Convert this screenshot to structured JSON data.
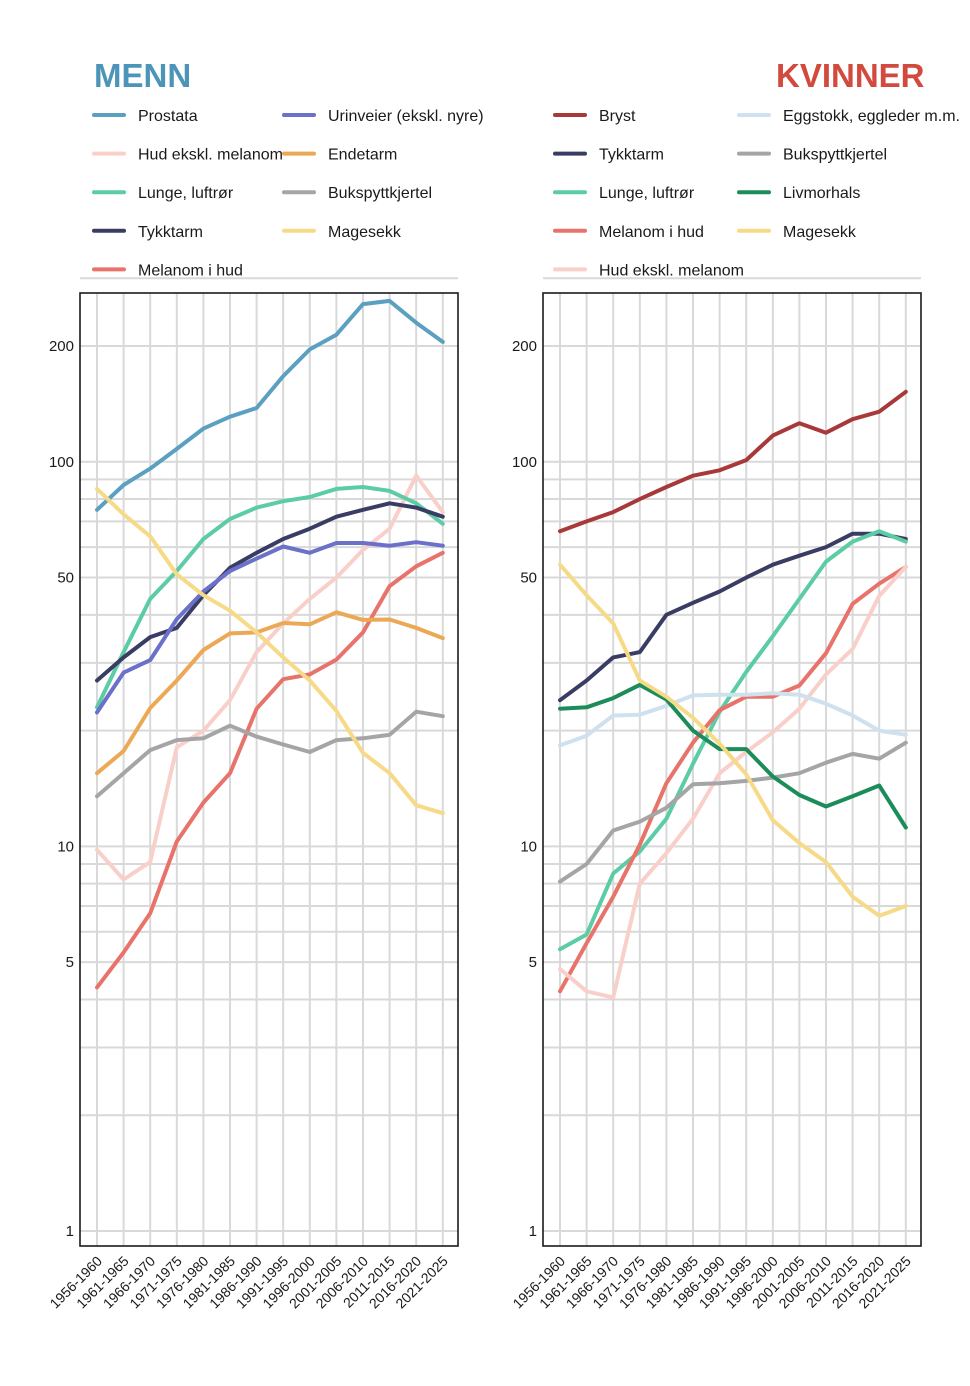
{
  "chart_data": [
    {
      "type": "line",
      "title": "MENN",
      "title_color": "#4c94b8",
      "y_scale": "log",
      "ylim": [
        1,
        300
      ],
      "y_ticks": [
        1,
        5,
        10,
        50,
        100,
        200
      ],
      "grid": true,
      "legend_placement": "top",
      "categories": [
        "1956-1960",
        "1961-1965",
        "1966-1970",
        "1971-1975",
        "1976-1980",
        "1981-1985",
        "1986-1990",
        "1991-1995",
        "1996-2000",
        "2001-2005",
        "2006-2010",
        "2011-2015",
        "2016-2020",
        "2021-2025"
      ],
      "series": [
        {
          "name": "Prostata",
          "color": "#5b9fc1",
          "values": [
            75,
            87,
            96,
            108,
            122,
            131,
            138,
            167,
            196,
            214,
            257,
            262,
            230,
            205
          ]
        },
        {
          "name": "Hud ekskl. melanom",
          "color": "#f9cfca",
          "values": [
            9.8,
            8.2,
            9.1,
            18.1,
            20,
            24,
            32,
            38,
            44,
            50,
            59,
            67,
            92,
            74
          ]
        },
        {
          "name": "Lunge, luftrør",
          "color": "#5ccca5",
          "values": [
            23,
            32,
            44,
            52,
            63,
            71,
            76,
            79,
            81,
            85,
            86,
            84,
            78,
            69
          ]
        },
        {
          "name": "Tykktarm",
          "color": "#3a3d63",
          "values": [
            27,
            31,
            35,
            37,
            45,
            53,
            58,
            63,
            67,
            72,
            75,
            78,
            76,
            72
          ]
        },
        {
          "name": "Melanom i hud",
          "color": "#e8736b",
          "values": [
            4.3,
            5.3,
            6.7,
            10.3,
            13,
            15.5,
            22.8,
            27.2,
            28,
            30.6,
            36,
            47.5,
            53.5,
            58
          ]
        },
        {
          "name": "Urinveier (ekskl. nyre)",
          "color": "#6b70c9",
          "values": [
            22.3,
            28.3,
            30.5,
            39,
            46,
            52,
            56,
            60.2,
            58,
            61.5,
            61.5,
            60.5,
            61.8,
            60.5
          ]
        },
        {
          "name": "Endetarm",
          "color": "#eba955",
          "values": [
            15.5,
            17.7,
            22.9,
            27,
            32.4,
            35.8,
            36,
            38.1,
            37.8,
            40.6,
            38.8,
            38.9,
            37,
            34.8
          ]
        },
        {
          "name": "Bukspyttkjertel",
          "color": "#a5a5a5",
          "values": [
            13.5,
            15.5,
            17.8,
            18.9,
            19.1,
            20.6,
            19.3,
            18.4,
            17.6,
            18.9,
            19.1,
            19.5,
            22.4,
            21.8
          ]
        },
        {
          "name": "Magesekk",
          "color": "#f7da87",
          "values": [
            85,
            73,
            64,
            51,
            45,
            41,
            36,
            31,
            27,
            22.5,
            17.5,
            15.5,
            12.8,
            12.2
          ]
        }
      ]
    },
    {
      "type": "line",
      "title": "KVINNER",
      "title_color": "#d24a3e",
      "y_scale": "log",
      "ylim": [
        1,
        300
      ],
      "y_ticks": [
        1,
        5,
        10,
        50,
        100,
        200
      ],
      "grid": true,
      "legend_placement": "top",
      "categories": [
        "1956-1960",
        "1961-1965",
        "1966-1970",
        "1971-1975",
        "1976-1980",
        "1981-1985",
        "1986-1990",
        "1991-1995",
        "1996-2000",
        "2001-2005",
        "2006-2010",
        "2011-2015",
        "2016-2020",
        "2021-2025"
      ],
      "series": [
        {
          "name": "Bryst",
          "color": "#a8393a",
          "values": [
            66,
            70,
            74,
            80,
            86,
            92,
            95,
            101,
            117,
            126,
            119,
            129,
            135,
            152
          ]
        },
        {
          "name": "Tykktarm",
          "color": "#3a3d63",
          "values": [
            24,
            27,
            31,
            32,
            40,
            43,
            46,
            50,
            54,
            57,
            60,
            65,
            65,
            63
          ]
        },
        {
          "name": "Lunge, luftrør",
          "color": "#5ccca5",
          "values": [
            5.4,
            5.9,
            8.5,
            9.7,
            11.8,
            16.4,
            22.4,
            28.4,
            35.2,
            44,
            55,
            62,
            66,
            62
          ]
        },
        {
          "name": "Melanom i hud",
          "color": "#e8736b",
          "values": [
            4.2,
            5.6,
            7.4,
            10.1,
            14.6,
            18.6,
            22.6,
            24.5,
            24.5,
            26.2,
            31.8,
            42.7,
            48.2,
            53.3
          ]
        },
        {
          "name": "Hud ekskl. melanom",
          "color": "#f9cfca",
          "values": [
            4.8,
            4.2,
            4.05,
            8,
            9.6,
            11.8,
            15.5,
            17.6,
            19.8,
            22.8,
            28,
            32.6,
            44.8,
            53.3
          ]
        },
        {
          "name": "Eggstokk, eggleder m.m.",
          "color": "#cfe1ee",
          "values": [
            18.3,
            19.4,
            21.9,
            22.0,
            23.2,
            24.7,
            24.8,
            24.8,
            25.0,
            24.8,
            23.5,
            21.9,
            20.0,
            19.5
          ]
        },
        {
          "name": "Bukspyttkjertel",
          "color": "#a5a5a5",
          "values": [
            8.1,
            9.0,
            11.0,
            11.6,
            12.6,
            14.5,
            14.6,
            14.8,
            15.1,
            15.5,
            16.5,
            17.4,
            16.9,
            18.6
          ]
        },
        {
          "name": "Livmorhals",
          "color": "#1c8c5b",
          "values": [
            22.8,
            23.0,
            24.3,
            26.3,
            24.1,
            20.0,
            17.9,
            17.9,
            15.2,
            13.6,
            12.7,
            13.5,
            14.4,
            11.2
          ]
        },
        {
          "name": "Magesekk",
          "color": "#f7da87",
          "values": [
            54,
            45,
            38,
            27,
            24.5,
            21.6,
            18.5,
            15.4,
            11.7,
            10.2,
            9.1,
            7.4,
            6.6,
            7.0
          ]
        }
      ]
    }
  ]
}
